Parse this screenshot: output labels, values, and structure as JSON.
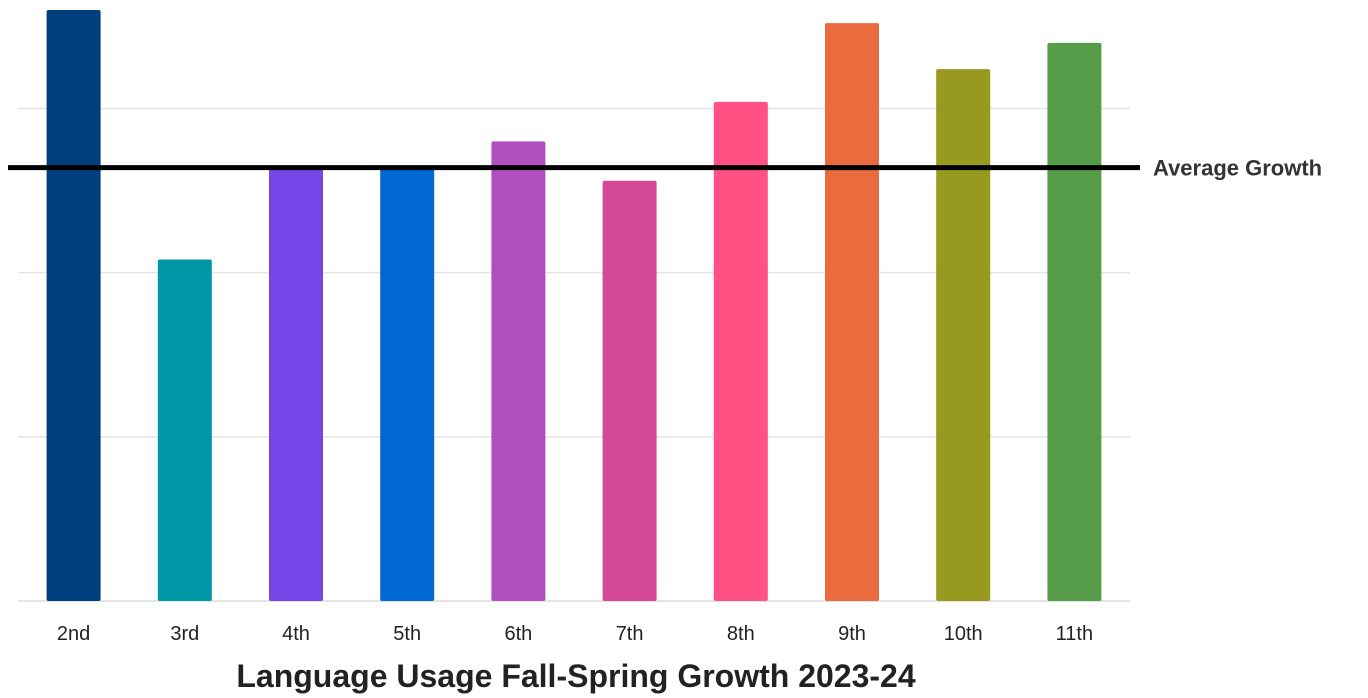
{
  "chart_data": {
    "type": "bar",
    "title": "Language Usage Fall-Spring Growth 2023-24",
    "xlabel": "",
    "ylabel": "",
    "categories": [
      "2nd",
      "3rd",
      "4th",
      "5th",
      "6th",
      "7th",
      "8th",
      "9th",
      "10th",
      "11th"
    ],
    "values": [
      4.5,
      2.6,
      3.3,
      3.3,
      3.5,
      3.2,
      3.8,
      4.4,
      4.05,
      4.25
    ],
    "bar_colors": [
      "#003f7f",
      "#0097a7",
      "#7446e8",
      "#006ad2",
      "#b04fc0",
      "#d34794",
      "#ff5184",
      "#e96b3e",
      "#979a1f",
      "#579c48"
    ],
    "ylim": [
      0,
      4.5
    ],
    "grid": true,
    "reference_line": {
      "label": "Average Growth",
      "value": 3.3,
      "color": "#000000"
    }
  }
}
